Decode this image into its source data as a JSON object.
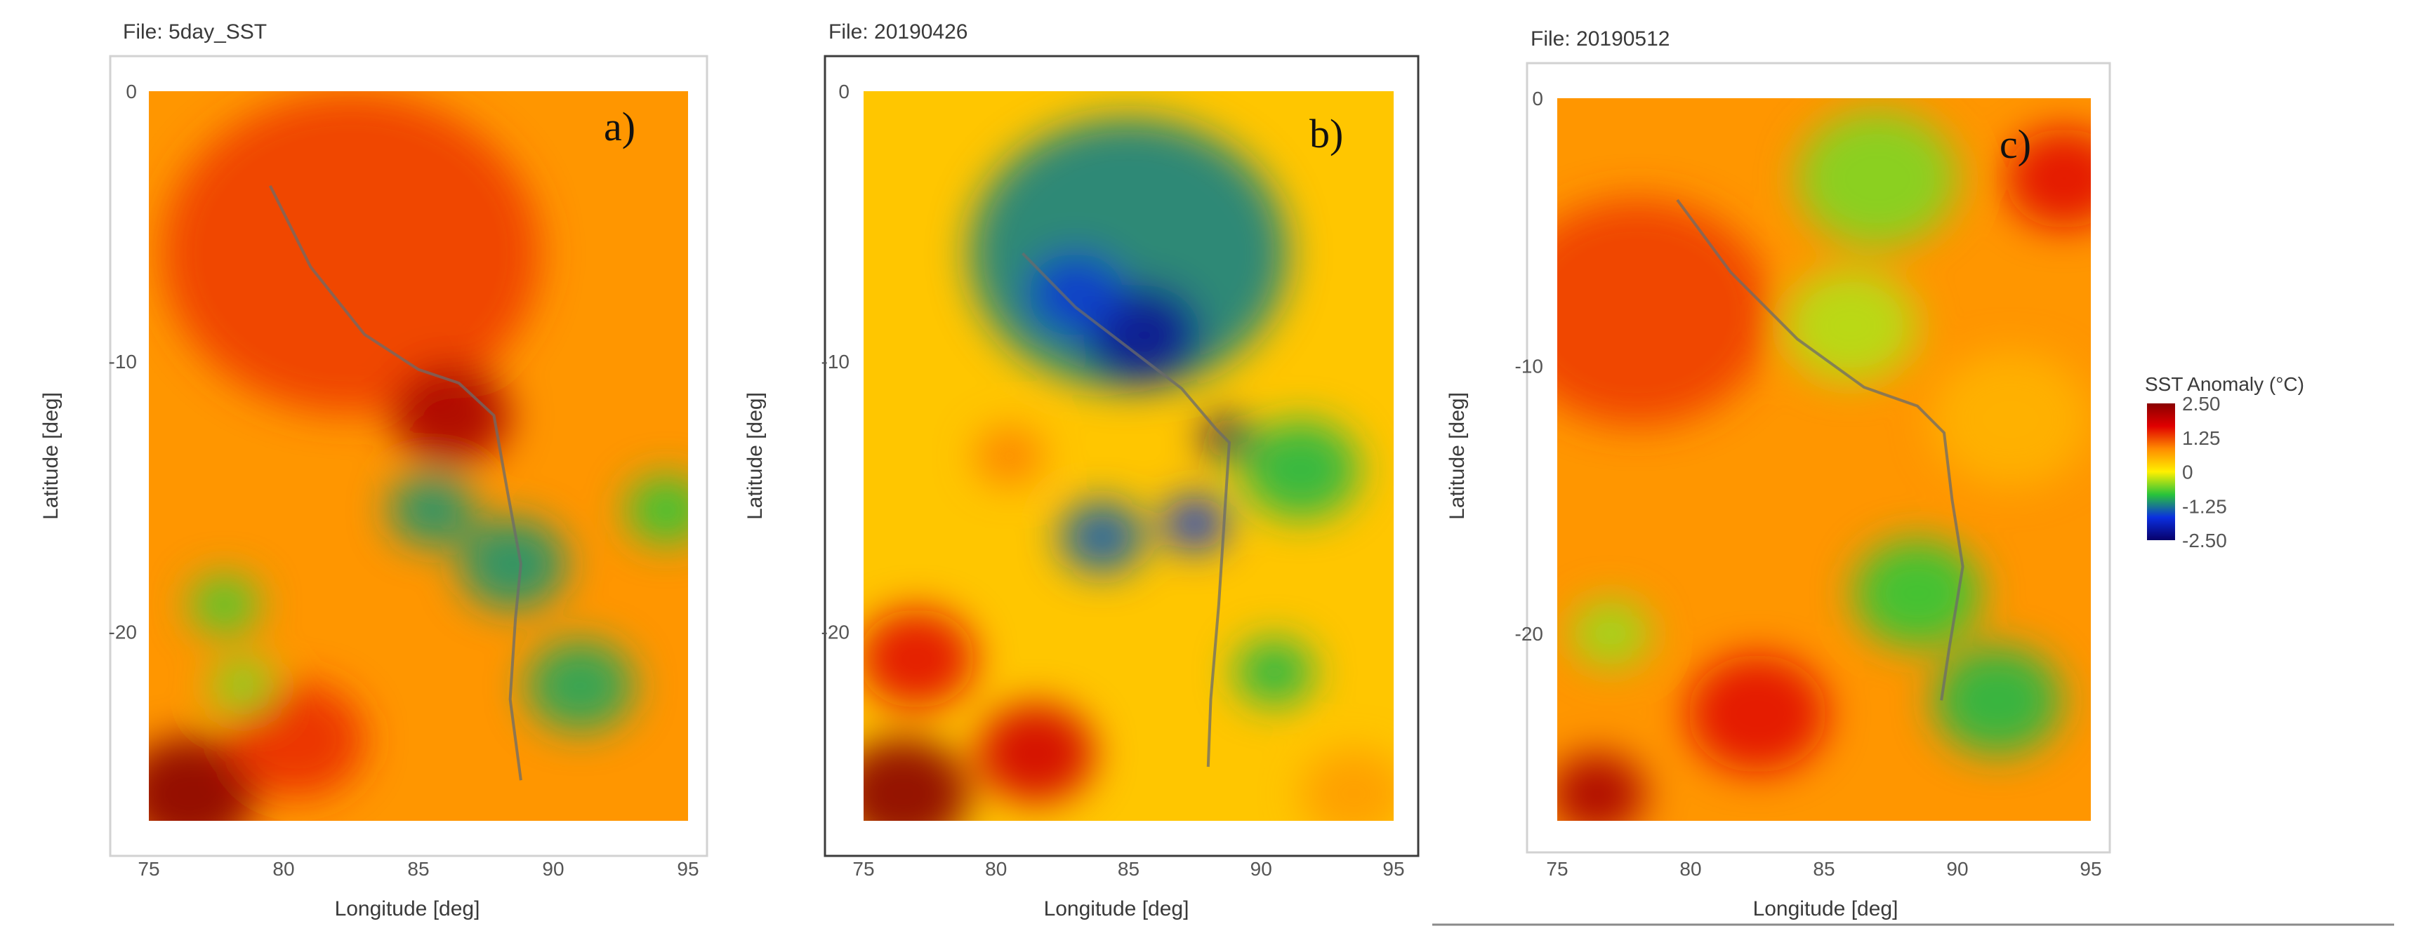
{
  "chart_data": [
    {
      "type": "heatmap",
      "file_label": "File: 5day_SST",
      "panel_label": "a)",
      "xlabel": "Longitude [deg]",
      "ylabel": "Latitude [deg]",
      "xticks": [
        "75",
        "80",
        "85",
        "90",
        "95"
      ],
      "yticks": [
        "0",
        "-10",
        "-20"
      ],
      "xlim": [
        75,
        95
      ],
      "ylim": [
        -27,
        0
      ],
      "variable": "SST Anomaly",
      "colormap_range": [
        -2.5,
        2.5
      ],
      "track": [
        [
          79.5,
          -3.5
        ],
        [
          81,
          -6.5
        ],
        [
          83,
          -9
        ],
        [
          85,
          -10.3
        ],
        [
          86.5,
          -10.8
        ],
        [
          87.8,
          -12
        ],
        [
          88.3,
          -14.8
        ],
        [
          88.8,
          -17.5
        ],
        [
          88.6,
          -19.5
        ],
        [
          88.4,
          -22.5
        ],
        [
          88.8,
          -25.5
        ]
      ],
      "anomalies": [
        {
          "lon": 82.5,
          "lat": -6,
          "value": 1.3,
          "radius": 7
        },
        {
          "lon": 86.2,
          "lat": -12,
          "value": 2.2,
          "radius": 2.2
        },
        {
          "lon": 76.5,
          "lat": -26,
          "value": 2.5,
          "radius": 2.5
        },
        {
          "lon": 80.5,
          "lat": -24,
          "value": 1.4,
          "radius": 2.5
        },
        {
          "lon": 85.5,
          "lat": -15.5,
          "value": -1.1,
          "radius": 1.6
        },
        {
          "lon": 88.5,
          "lat": -17.5,
          "value": -1.1,
          "radius": 2.0
        },
        {
          "lon": 91,
          "lat": -22,
          "value": -1.0,
          "radius": 2.0
        },
        {
          "lon": 94.2,
          "lat": -15.5,
          "value": -0.8,
          "radius": 1.5
        },
        {
          "lon": 77.8,
          "lat": -19,
          "value": -0.7,
          "radius": 1.3
        },
        {
          "lon": 78.5,
          "lat": -22,
          "value": -0.5,
          "radius": 1.2
        }
      ]
    },
    {
      "type": "heatmap",
      "file_label": "File: 20190426",
      "panel_label": "b)",
      "xlabel": "Longitude [deg]",
      "ylabel": "Latitude [deg]",
      "xticks": [
        "75",
        "80",
        "85",
        "90",
        "95"
      ],
      "yticks": [
        "0",
        "-10",
        "-20"
      ],
      "xlim": [
        75,
        95
      ],
      "ylim": [
        -27,
        0
      ],
      "variable": "SST Anomaly",
      "colormap_range": [
        -2.5,
        2.5
      ],
      "track": [
        [
          81,
          -6
        ],
        [
          83,
          -8
        ],
        [
          85,
          -9.5
        ],
        [
          87,
          -11
        ],
        [
          88.3,
          -12.5
        ],
        [
          88.8,
          -13
        ],
        [
          88.6,
          -16
        ],
        [
          88.4,
          -19
        ],
        [
          88.1,
          -22.5
        ],
        [
          88,
          -25
        ]
      ],
      "anomalies": [
        {
          "lon": 85,
          "lat": -6,
          "value": -1.2,
          "radius": 6
        },
        {
          "lon": 85.5,
          "lat": -9,
          "value": -2.2,
          "radius": 2.2
        },
        {
          "lon": 83,
          "lat": -7.5,
          "value": -1.6,
          "radius": 1.8
        },
        {
          "lon": 88.7,
          "lat": -12.8,
          "value": -2.5,
          "radius": 0.9
        },
        {
          "lon": 84,
          "lat": -16.5,
          "value": -1.4,
          "radius": 1.6
        },
        {
          "lon": 87.5,
          "lat": -16,
          "value": -1.6,
          "radius": 1.2
        },
        {
          "lon": 91.5,
          "lat": -14,
          "value": -0.9,
          "radius": 2.2
        },
        {
          "lon": 90.5,
          "lat": -21.5,
          "value": -0.9,
          "radius": 1.5
        },
        {
          "lon": 76.5,
          "lat": -26,
          "value": 2.5,
          "radius": 2.5
        },
        {
          "lon": 77,
          "lat": -21,
          "value": 1.6,
          "radius": 2.2
        },
        {
          "lon": 81.5,
          "lat": -24.5,
          "value": 1.8,
          "radius": 2.2
        },
        {
          "lon": 80.5,
          "lat": -13.5,
          "value": 0.9,
          "radius": 1.3
        },
        {
          "lon": 93.5,
          "lat": -26,
          "value": 0.7,
          "radius": 2.0
        }
      ]
    },
    {
      "type": "heatmap",
      "file_label": "File: 20190512",
      "panel_label": "c)",
      "xlabel": "Longitude [deg]",
      "ylabel": "Latitude [deg]",
      "xticks": [
        "75",
        "80",
        "85",
        "90",
        "95"
      ],
      "yticks": [
        "0",
        "-10",
        "-20"
      ],
      "xlim": [
        75,
        95
      ],
      "ylim": [
        -27,
        0
      ],
      "variable": "SST Anomaly",
      "colormap_range": [
        -2.5,
        2.5
      ],
      "track": [
        [
          79.5,
          -3.8
        ],
        [
          81.5,
          -6.5
        ],
        [
          84,
          -9
        ],
        [
          86.5,
          -10.8
        ],
        [
          88.5,
          -11.5
        ],
        [
          89.5,
          -12.5
        ],
        [
          89.8,
          -15
        ],
        [
          90.2,
          -17.5
        ],
        [
          89.7,
          -20.5
        ],
        [
          89.4,
          -22.5
        ]
      ],
      "anomalies": [
        {
          "lon": 78,
          "lat": -8,
          "value": 1.3,
          "radius": 5
        },
        {
          "lon": 82.5,
          "lat": -23,
          "value": 1.6,
          "radius": 2.6
        },
        {
          "lon": 76.5,
          "lat": -26,
          "value": 2.2,
          "radius": 1.8
        },
        {
          "lon": 94,
          "lat": -3,
          "value": 1.6,
          "radius": 2.2
        },
        {
          "lon": 92,
          "lat": -12,
          "value": 0.5,
          "radius": 3
        },
        {
          "lon": 88.5,
          "lat": -18.5,
          "value": -0.8,
          "radius": 2.4
        },
        {
          "lon": 91.5,
          "lat": -22.5,
          "value": -0.9,
          "radius": 2.4
        },
        {
          "lon": 87,
          "lat": -3,
          "value": -0.5,
          "radius": 3
        },
        {
          "lon": 77,
          "lat": -20,
          "value": -0.4,
          "radius": 1.5
        },
        {
          "lon": 86,
          "lat": -8.5,
          "value": -0.3,
          "radius": 2.5
        }
      ]
    }
  ],
  "legend": {
    "title": "SST Anomaly (°C)",
    "ticks": [
      "2.50",
      "1.25",
      "0",
      "-1.25",
      "-2.50"
    ],
    "range": [
      -2.5,
      2.5
    ],
    "colors": [
      "#08006a",
      "#0a2fe0",
      "#28c43a",
      "#fff000",
      "#ff8c00",
      "#e00000",
      "#8a0000"
    ]
  }
}
